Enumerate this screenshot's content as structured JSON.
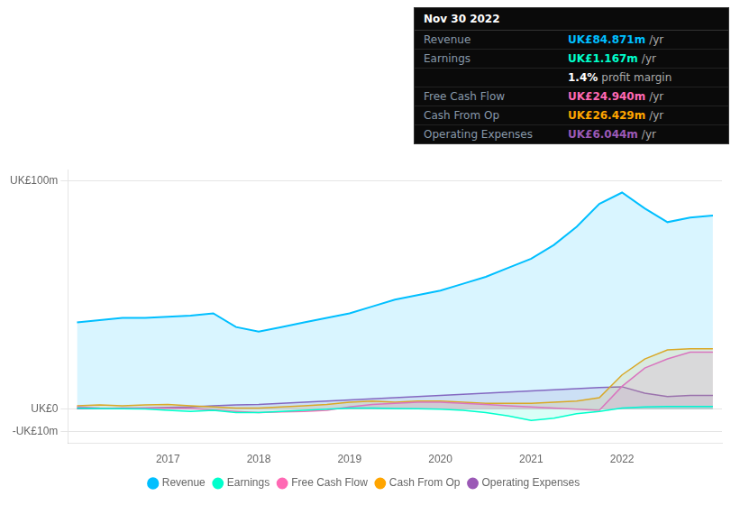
{
  "chart_data": {
    "type": "line",
    "x": [
      2016.0,
      2016.25,
      2016.5,
      2016.75,
      2017.0,
      2017.25,
      2017.5,
      2017.75,
      2018.0,
      2018.25,
      2018.5,
      2018.75,
      2019.0,
      2019.25,
      2019.5,
      2019.75,
      2020.0,
      2020.25,
      2020.5,
      2020.75,
      2021.0,
      2021.25,
      2021.5,
      2021.75,
      2022.0,
      2022.25,
      2022.5,
      2022.75,
      2023.0
    ],
    "series": [
      {
        "name": "Revenue",
        "color": "#00bfff",
        "values": [
          38,
          39,
          40,
          40,
          40.5,
          41,
          42,
          36,
          34,
          36,
          38,
          40,
          42,
          45,
          48,
          50,
          52,
          55,
          58,
          62,
          66,
          72,
          80,
          90,
          95,
          88,
          82,
          84,
          84.871
        ]
      },
      {
        "name": "Earnings",
        "color": "#00ffcc",
        "values": [
          0.5,
          0.3,
          0.2,
          0.1,
          -0.5,
          -1,
          -0.5,
          -1.5,
          -1.5,
          -1,
          -0.5,
          0,
          0.5,
          0.5,
          0.3,
          0.2,
          0.0,
          -0.5,
          -1.5,
          -3,
          -5,
          -4,
          -2,
          -1,
          0.5,
          1.0,
          1.2,
          1.167,
          1.167
        ]
      },
      {
        "name": "Free Cash Flow",
        "color": "#ff69b4",
        "values": [
          1,
          0.5,
          0.3,
          0.5,
          0.5,
          0.3,
          -0.3,
          -1,
          -1.5,
          -1.2,
          -1,
          -0.5,
          1,
          2,
          2.5,
          3,
          3,
          2.5,
          2,
          1.5,
          1.0,
          0.5,
          0,
          -0.5,
          10,
          18,
          22,
          24.94,
          24.94
        ]
      },
      {
        "name": "Cash From Op",
        "color": "#ffa500",
        "values": [
          1.5,
          1.8,
          1.5,
          1.8,
          2,
          1.5,
          1,
          0.5,
          0.5,
          1,
          1.5,
          2,
          3,
          3.5,
          3,
          3.5,
          3.5,
          3,
          2.5,
          2.5,
          2.5,
          3,
          3.5,
          5,
          15,
          22,
          26,
          26.429,
          26.429
        ]
      },
      {
        "name": "Operating Expenses",
        "color": "#9b59b6",
        "values": [
          0.2,
          0.3,
          0.5,
          0.5,
          0.8,
          1.0,
          1.5,
          1.8,
          2.0,
          2.5,
          3.0,
          3.5,
          4.0,
          4.5,
          5.0,
          5.5,
          6.0,
          6.5,
          7.0,
          7.5,
          8.0,
          8.5,
          9.0,
          9.5,
          9.8,
          7.0,
          5.5,
          6.044,
          6.044
        ]
      }
    ],
    "xlim": [
      2015.9,
      2023.1
    ],
    "xticks": [
      2017,
      2018,
      2019,
      2020,
      2021,
      2022
    ],
    "ylim": [
      -15,
      105
    ],
    "yticks": [
      {
        "value": -10,
        "label": "-UK£10m"
      },
      {
        "value": 0,
        "label": "UK£0"
      },
      {
        "value": 100,
        "label": "UK£100m"
      }
    ],
    "grid": true,
    "legend": "bottom",
    "annotations": [
      {
        "text": "Nov 30 2022"
      },
      {
        "label": "Revenue",
        "text": "UK£84.871m",
        "color": "#00bfff",
        "suffix": "/yr"
      },
      {
        "label": "Earnings",
        "text": "UK£1.167m",
        "color": "#00ffcc",
        "suffix": "/yr"
      },
      {
        "text": "1.4%",
        "color": "#ffffff",
        "suffix": "profit margin"
      },
      {
        "label": "Free Cash Flow",
        "text": "UK£24.940m",
        "color": "#ff69b4",
        "suffix": "/yr"
      },
      {
        "label": "Cash From Op",
        "text": "UK£26.429m",
        "color": "#ffa500",
        "suffix": "/yr"
      },
      {
        "label": "Operating Expenses",
        "text": "UK£6.044m",
        "color": "#9b59b6",
        "suffix": "/yr"
      }
    ]
  }
}
